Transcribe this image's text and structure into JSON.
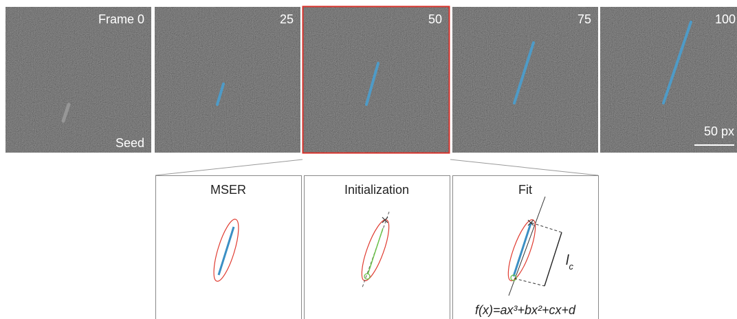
{
  "frames": [
    {
      "label": "Frame 0",
      "note": "Seed"
    },
    {
      "label": "25"
    },
    {
      "label": "50"
    },
    {
      "label": "75"
    },
    {
      "label": "100"
    }
  ],
  "scale_bar": "50 px",
  "panels": [
    {
      "title": "MSER"
    },
    {
      "title": "Initialization"
    },
    {
      "title": "Fit",
      "length_label": {
        "base": "l",
        "sub": "c"
      },
      "formula": "f(x)=ax³+bx²+cx+d"
    }
  ]
}
